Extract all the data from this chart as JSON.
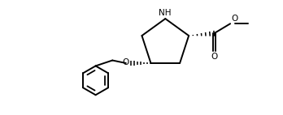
{
  "background_color": "#ffffff",
  "line_color": "#000000",
  "line_width": 1.4,
  "text_color": "#000000",
  "font_size": 7.5,
  "nh_label": "NH",
  "o_label": "O",
  "figsize": [
    3.48,
    1.42
  ],
  "dpi": 100,
  "xlim": [
    0,
    10
  ],
  "ylim": [
    0,
    4.08
  ]
}
